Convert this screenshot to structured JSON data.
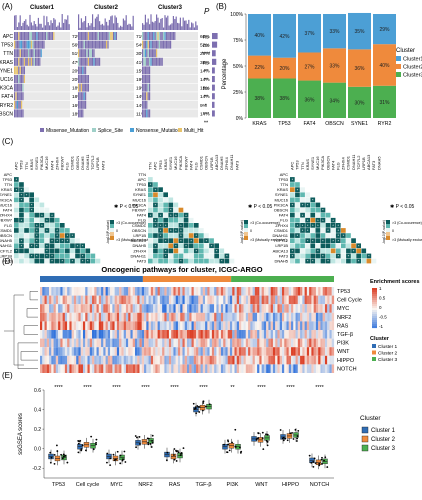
{
  "panels": {
    "A": {
      "label": "(A)",
      "clusters": [
        "Cluster1",
        "Cluster2",
        "Cluster3"
      ],
      "p_header": "P",
      "genes": [
        "APC",
        "TP53",
        "TTN",
        "KRAS",
        "SYNE1",
        "MUC16",
        "PIK3CA",
        "FAT4",
        "RYR2",
        "OBSCN"
      ],
      "cluster1_pct": [
        "72%",
        "56%",
        "51%",
        "47%",
        "20%",
        "20%",
        "18%",
        "18%",
        "16%",
        "18%"
      ],
      "cluster2_pct": [
        "71%",
        "54%",
        "30%",
        "41%",
        "15%",
        "19%",
        "19%",
        "14%",
        "14%",
        "11%"
      ],
      "cluster3_pct": [
        "60%",
        "52%",
        "28%",
        "38%",
        "14%",
        "14%",
        "15%",
        "14%",
        "9%",
        "14%"
      ],
      "p_values": [
        "ns",
        "ns",
        "****",
        "ns",
        "**",
        "**",
        "ns",
        "**",
        "*",
        "***"
      ],
      "last_sig": "**",
      "legend": [
        "Missense_Mutation",
        "Splice_Site",
        "Nonsense_Mutation",
        "Multi_Hit"
      ],
      "colors": {
        "missense": "#7d6fb0",
        "splice": "#9fd0c8",
        "nonsense": "#4a9fd6",
        "multi": "#e8c36a"
      }
    },
    "B": {
      "label": "(B)",
      "ylabel": "Percentage",
      "legend_title": "Cluster"
    },
    "C": {
      "label": "(C)",
      "p_note": "P < 0.05",
      "scale_title": "-log10(P-value)",
      "scale_labels": [
        ">3 (Co-occurence)",
        "0",
        ">3 (Mutually exclusive)"
      ]
    },
    "D": {
      "label": "(D)",
      "title": "Oncogenic pathways for cluster, ICGC-ARGO",
      "rows": [
        "TP53",
        "Cell Cycle",
        "MYC",
        "NRF2",
        "RAS",
        "TGF-β",
        "PI3K",
        "WNT",
        "HIPPO",
        "NOTCH"
      ],
      "enrichment_title": "Enrichment scores",
      "enrichment_ticks": [
        "1",
        "0.5",
        "0",
        "-0.5",
        "-1"
      ],
      "cluster_title": "Cluster",
      "cluster_names": [
        "Cluster 1",
        "Cluster 2",
        "Cluster 3"
      ]
    },
    "E": {
      "label": "(E)",
      "legend_title": "Cluster",
      "legend": [
        "Cluster 1",
        "Cluster 2",
        "Cluster 3"
      ]
    }
  },
  "chart_data": [
    {
      "type": "bar",
      "panel": "B",
      "stacked": true,
      "categories": [
        "KRAS",
        "TP53",
        "FAT4",
        "OBSCN",
        "SYNE1",
        "RYR2"
      ],
      "series": [
        {
          "name": "Cluster1",
          "values": [
            40,
            42,
            37,
            33,
            35,
            29
          ]
        },
        {
          "name": "Cluster2",
          "values": [
            22,
            20,
            27,
            33,
            36,
            40
          ]
        },
        {
          "name": "Cluster3",
          "values": [
            38,
            38,
            36,
            34,
            30,
            31
          ]
        }
      ],
      "labels": [
        [
          "40%",
          "42%",
          "37%",
          "33%",
          "35%",
          "29%"
        ],
        [
          "22%",
          "20%",
          "27%",
          "33%",
          "36%",
          "40%"
        ],
        [
          "38%",
          "38%",
          "36%",
          "34%",
          "30%",
          "31%"
        ]
      ],
      "ylabel": "Percentage",
      "ylim": [
        0,
        100
      ],
      "yticks": [
        "0%",
        "25%",
        "50%",
        "75%",
        "100%"
      ],
      "legend_title": "Cluster",
      "colors": {
        "Cluster1": "#4c9fd5",
        "Cluster2": "#ef8a3c",
        "Cluster3": "#4caf50"
      }
    },
    {
      "type": "heatmap",
      "panel": "D",
      "title": "Oncogenic pathways for cluster, ICGC-ARGO",
      "rows": [
        "TP53",
        "Cell Cycle",
        "MYC",
        "NRF2",
        "RAS",
        "TGF-β",
        "PI3K",
        "WNT",
        "HIPPO",
        "NOTCH"
      ],
      "scale": [
        -1,
        1
      ],
      "column_groups": [
        "Cluster 1",
        "Cluster 2",
        "Cluster 3"
      ],
      "group_colors": [
        "#2f6db5",
        "#ef8a3c",
        "#4caf50"
      ],
      "group_trend": [
        [
          -0.3,
          0.1,
          0.3
        ],
        [
          0.2,
          -0.4,
          0.2
        ],
        [
          0.1,
          -0.5,
          0.2
        ],
        [
          0.3,
          0.1,
          -0.2
        ],
        [
          0.5,
          -0.3,
          -0.2
        ],
        [
          -0.4,
          0.7,
          -0.2
        ],
        [
          -0.1,
          0.1,
          0.2
        ],
        [
          -0.3,
          -0.1,
          0.5
        ],
        [
          -0.2,
          0.1,
          0.4
        ],
        [
          0.3,
          0.0,
          -0.3
        ]
      ]
    },
    {
      "type": "box",
      "panel": "E",
      "ylabel": "ssGSEA scores",
      "ylim": [
        -0.3,
        0.6
      ],
      "yticks": [
        "-0.2",
        "0.0",
        "0.2",
        "0.4",
        "0.6"
      ],
      "categories": [
        "TP53",
        "Cell cycle",
        "MYC",
        "NRF2",
        "RAS",
        "TGF-β",
        "PI3K",
        "WNT",
        "HIPPO",
        "NOTCH"
      ],
      "significance": [
        "****",
        "****",
        "****",
        "****",
        "****",
        "****",
        "**",
        "****",
        "****",
        "****"
      ],
      "series": [
        {
          "name": "Cluster 1",
          "medians": [
            -0.08,
            0.02,
            -0.08,
            0.06,
            -0.06,
            0.4,
            0.02,
            0.1,
            0.12,
            -0.12
          ]
        },
        {
          "name": "Cluster 2",
          "medians": [
            -0.1,
            0.04,
            -0.1,
            0.07,
            -0.08,
            0.42,
            0.03,
            0.09,
            0.13,
            -0.14
          ]
        },
        {
          "name": "Cluster 3",
          "medians": [
            -0.09,
            0.03,
            -0.09,
            0.08,
            -0.07,
            0.43,
            0.02,
            0.11,
            0.14,
            -0.13
          ]
        }
      ],
      "legend_title": "Cluster",
      "colors": {
        "Cluster 1": "#2f6db5",
        "Cluster 2": "#ef8a3c",
        "Cluster 3": "#4caf50"
      }
    }
  ]
}
